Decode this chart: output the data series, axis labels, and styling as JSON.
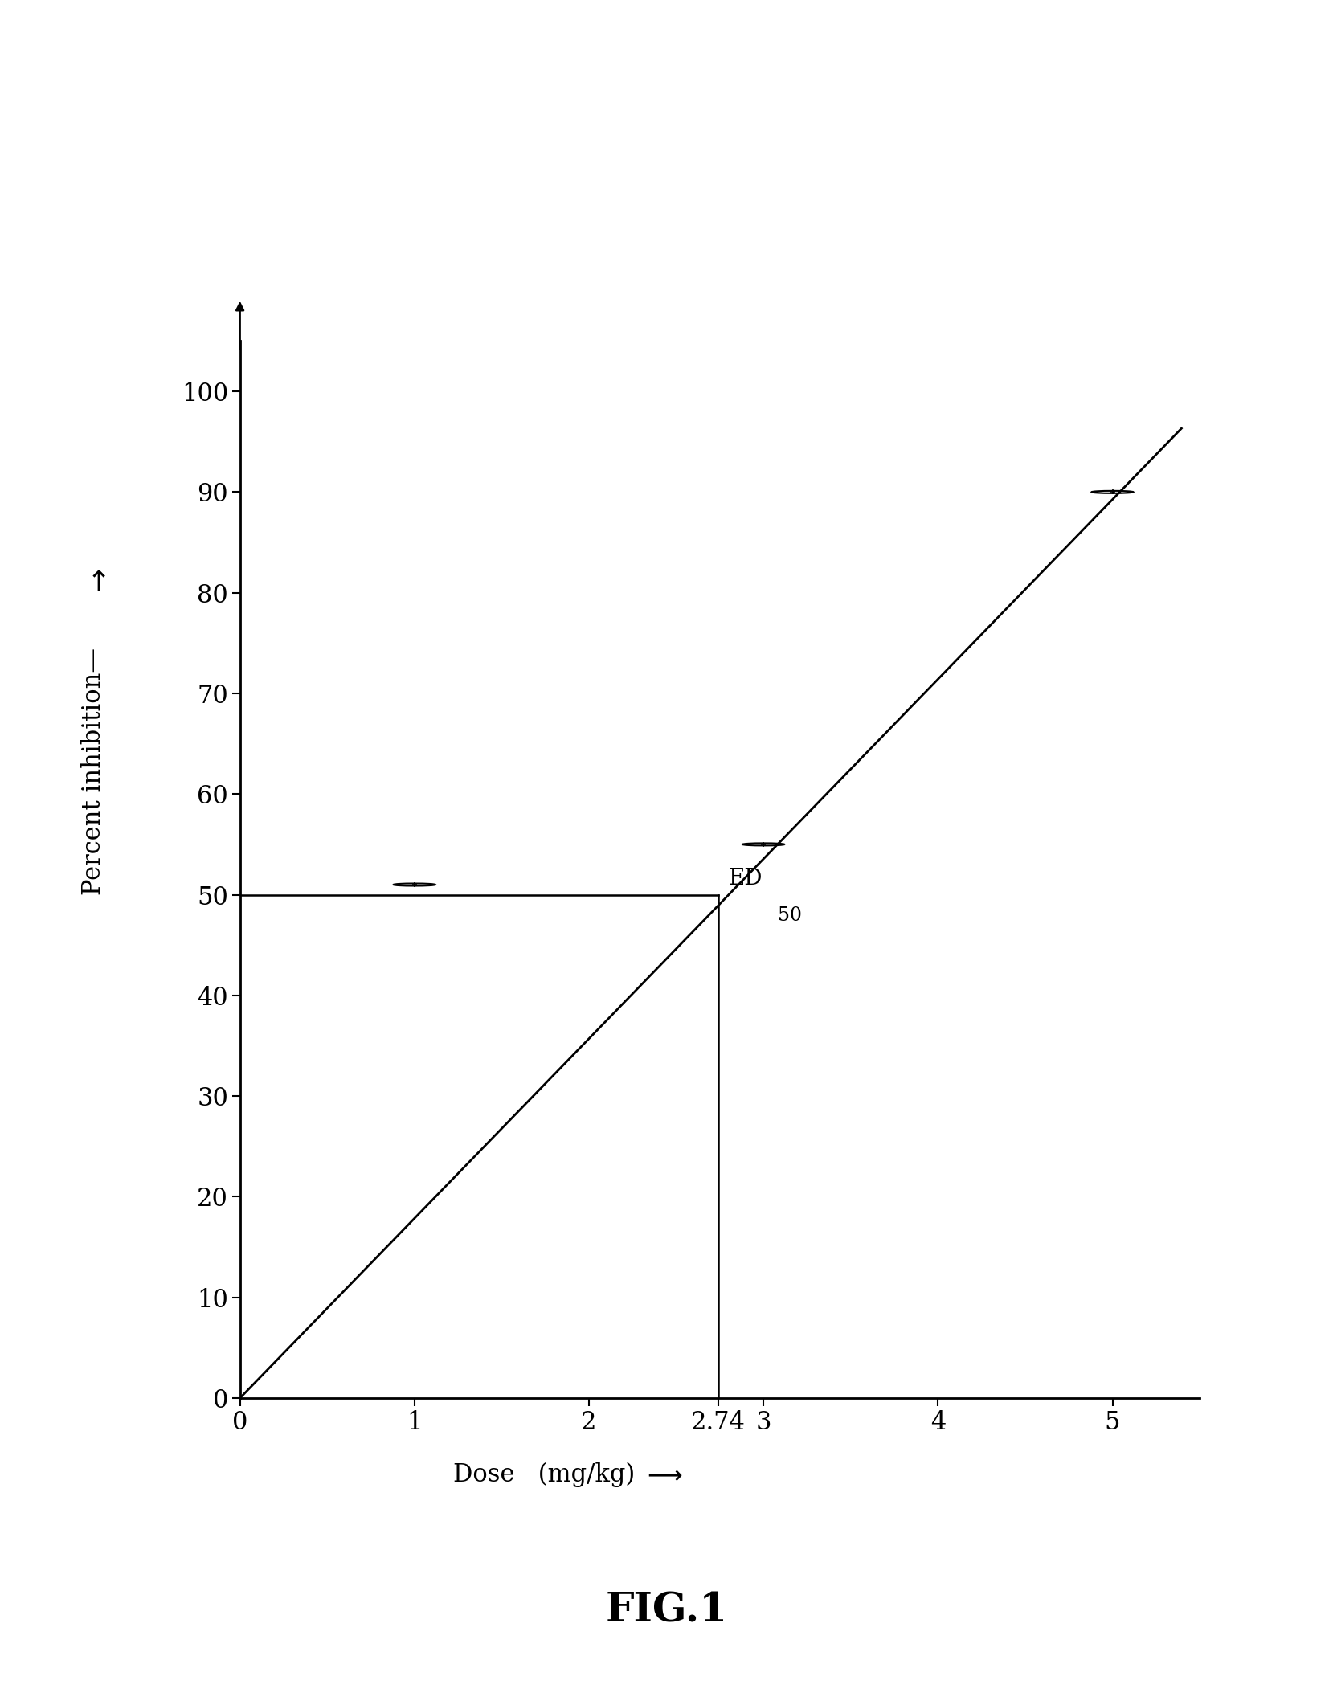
{
  "title": "FIG.1",
  "xlabel_text": "Dose   (mg/kg)",
  "ylabel_text": "Percent inhibition",
  "xlim": [
    0,
    5.5
  ],
  "ylim": [
    0,
    105
  ],
  "xticks": [
    0,
    1,
    2,
    2.74,
    3,
    4,
    5
  ],
  "xtick_labels": [
    "0",
    "1",
    "2",
    "2.74",
    "3",
    "4",
    "5"
  ],
  "yticks": [
    0,
    10,
    20,
    30,
    40,
    50,
    60,
    70,
    80,
    90,
    100
  ],
  "data_points_x": [
    1,
    3,
    5
  ],
  "data_points_y": [
    51,
    55,
    90
  ],
  "line_x": [
    0,
    5.4
  ],
  "line_y": [
    0,
    96.4
  ],
  "ed50_x": 2.74,
  "ed50_y": 50,
  "hline_y": 50,
  "hline_xstart": 0,
  "hline_xend": 2.74,
  "vline_x": 2.74,
  "vline_ystart": 0,
  "vline_yend": 50,
  "background_color": "#ffffff",
  "line_color": "#000000",
  "marker_color": "#000000",
  "text_color": "#000000",
  "title_fontsize": 36,
  "label_fontsize": 22,
  "tick_fontsize": 22,
  "ed50_fontsize": 20,
  "ed50_sub_fontsize": 17,
  "fig_width": 16.59,
  "fig_height": 21.22
}
